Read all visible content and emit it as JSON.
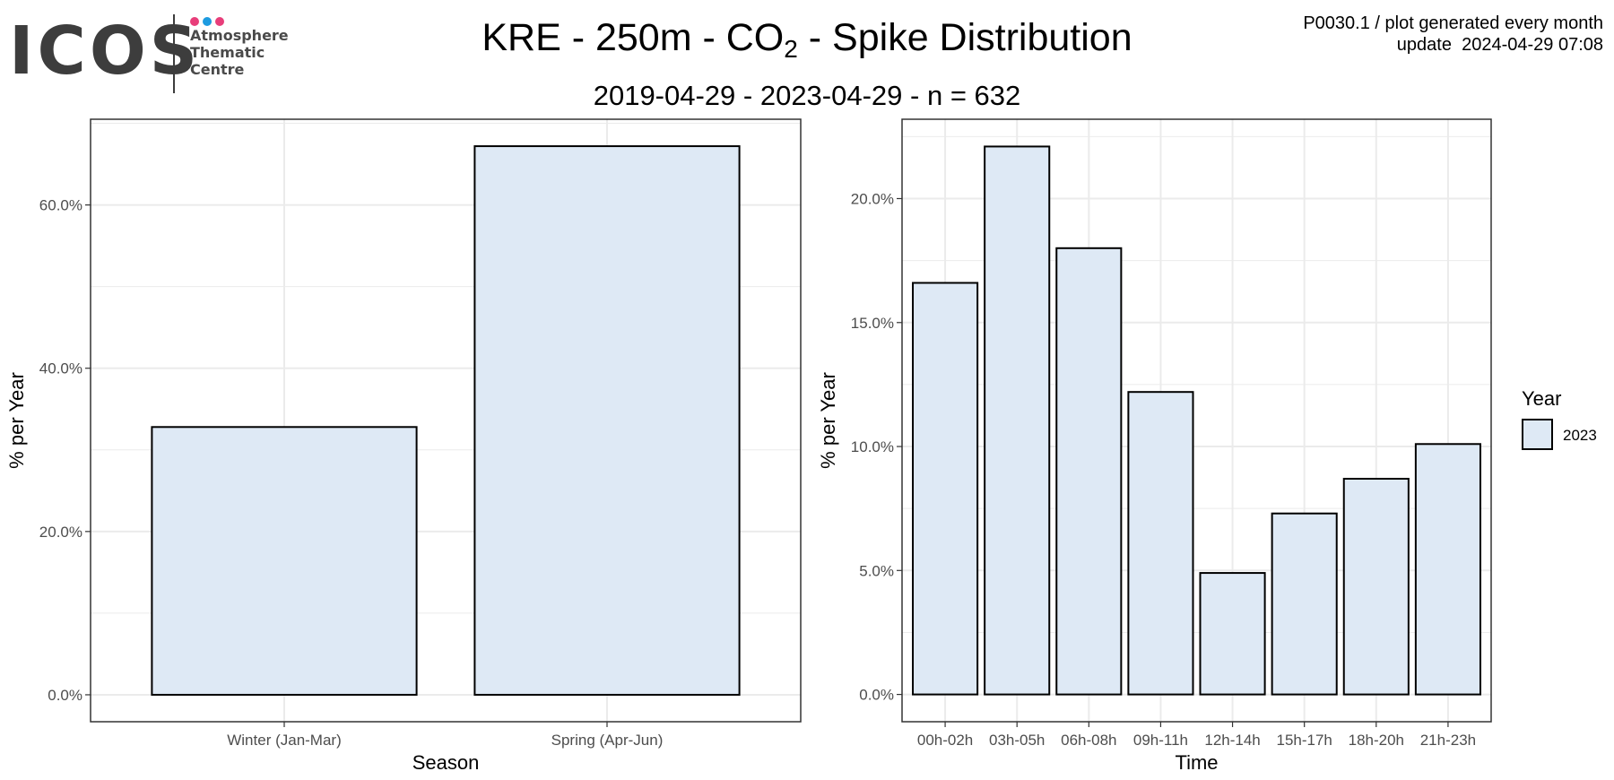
{
  "logo": {
    "wordmark": "ICOS",
    "tagline": "Atmosphere\nThematic\nCentre",
    "dot_colors": [
      "#e83e7a",
      "#1d9be0",
      "#e83e7a"
    ]
  },
  "header": {
    "title_prefix": "KRE - 250m - CO",
    "title_sub": "2",
    "title_suffix": " - Spike Distribution",
    "subtitle": "2019-04-29  -  2023-04-29  - n =  632",
    "meta_line1": "P0030.1 / plot generated every month",
    "meta_line2": "update  2024-04-29 07:08"
  },
  "legend": {
    "title": "Year",
    "items": [
      "2023"
    ]
  },
  "colors": {
    "bar_fill": "#dee9f5",
    "bar_stroke": "#000000",
    "grid": "#ebebeb",
    "panel_border": "#333333",
    "tick_text": "#4d4d4d"
  },
  "chart_data": [
    {
      "type": "bar",
      "categories": [
        "Winter (Jan-Mar)",
        "Spring (Apr-Jun)"
      ],
      "series": [
        {
          "name": "2023",
          "values": [
            32.8,
            67.2
          ]
        }
      ],
      "xlabel": "Season",
      "ylabel": "% per Year",
      "ylim": [
        -3.3,
        70.5
      ],
      "yticks": [
        0,
        20,
        40,
        60
      ],
      "yticklabels": [
        "0.0%",
        "20.0%",
        "40.0%",
        "60.0%"
      ],
      "grid": true,
      "legend": "none"
    },
    {
      "type": "bar",
      "categories": [
        "00h-02h",
        "03h-05h",
        "06h-08h",
        "09h-11h",
        "12h-14h",
        "15h-17h",
        "18h-20h",
        "21h-23h"
      ],
      "series": [
        {
          "name": "2023",
          "values": [
            16.6,
            22.1,
            18.0,
            12.2,
            4.9,
            7.3,
            8.7,
            10.1
          ]
        }
      ],
      "xlabel": "Time",
      "ylabel": "% per Year",
      "ylim": [
        -1.1,
        23.2
      ],
      "yticks": [
        0,
        5,
        10,
        15,
        20
      ],
      "yticklabels": [
        "0.0%",
        "5.0%",
        "10.0%",
        "15.0%",
        "20.0%"
      ],
      "grid": true,
      "legend": "right"
    }
  ]
}
